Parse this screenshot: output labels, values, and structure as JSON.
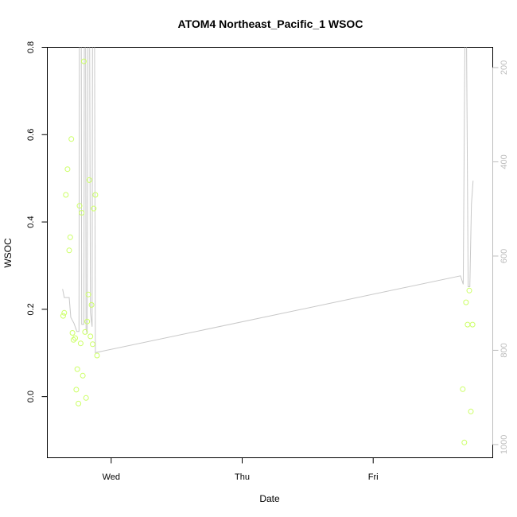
{
  "chart_data": {
    "type": "scatter",
    "title": "ATOM4 Northeast_Pacific_1 WSOC",
    "xlabel": "Date",
    "ylabel": "WSOC",
    "x_ticks": [
      "Wed",
      "Thu",
      "Fri"
    ],
    "x_tick_positions_hours": [
      48,
      72,
      96
    ],
    "xlim_hours": [
      36.3,
      117.9
    ],
    "ylim": [
      -0.14,
      0.8
    ],
    "y_ticks": [
      0.0,
      0.2,
      0.4,
      0.6,
      0.8
    ],
    "y_tick_labels": [
      "0.0",
      "0.2",
      "0.4",
      "0.6",
      "0.8"
    ],
    "secondary_axis": {
      "side": "right",
      "ylim": [
        1028,
        157
      ],
      "ticks": [
        200,
        400,
        600,
        800,
        1000
      ],
      "color": "#bdbdbd"
    },
    "grid": false,
    "series": [
      {
        "marker": "open-circle",
        "color": "#ccff66",
        "points": [
          [
            39.2,
            0.185
          ],
          [
            39.4,
            0.192
          ],
          [
            39.7,
            0.462
          ],
          [
            40.0,
            0.521
          ],
          [
            40.3,
            0.335
          ],
          [
            40.5,
            0.365
          ],
          [
            40.7,
            0.59
          ],
          [
            40.9,
            0.146
          ],
          [
            41.1,
            0.13
          ],
          [
            41.4,
            0.134
          ],
          [
            41.6,
            0.016
          ],
          [
            41.8,
            0.063
          ],
          [
            42.0,
            -0.016
          ],
          [
            42.2,
            0.437
          ],
          [
            42.4,
            0.122
          ],
          [
            42.6,
            0.421
          ],
          [
            42.8,
            0.048
          ],
          [
            43.0,
            0.768
          ],
          [
            43.2,
            0.148
          ],
          [
            43.4,
            -0.003
          ],
          [
            43.6,
            0.172
          ],
          [
            43.8,
            0.234
          ],
          [
            44.0,
            0.496
          ],
          [
            44.2,
            0.138
          ],
          [
            44.4,
            0.21
          ],
          [
            44.6,
            0.12
          ],
          [
            44.8,
            0.431
          ],
          [
            45.1,
            0.462
          ],
          [
            45.4,
            0.094
          ],
          [
            112.4,
            0.017
          ],
          [
            112.7,
            -0.105
          ],
          [
            113.0,
            0.216
          ],
          [
            113.3,
            0.165
          ],
          [
            113.6,
            0.243
          ],
          [
            113.9,
            -0.034
          ],
          [
            114.2,
            0.165
          ]
        ]
      },
      {
        "type": "line",
        "axis": "secondary",
        "color": "#c8c8c8",
        "points": [
          [
            39.1,
            670
          ],
          [
            39.4,
            688
          ],
          [
            39.8,
            688
          ],
          [
            40.3,
            688
          ],
          [
            40.6,
            730
          ],
          [
            41.2,
            743
          ],
          [
            41.7,
            760
          ],
          [
            42.1,
            760
          ],
          [
            42.2,
            -100
          ],
          [
            42.5,
            -100
          ],
          [
            42.6,
            745
          ],
          [
            43.0,
            745
          ],
          [
            43.1,
            -100
          ],
          [
            43.3,
            -100
          ],
          [
            43.4,
            755
          ],
          [
            43.6,
            765
          ],
          [
            43.8,
            -100
          ],
          [
            44.0,
            -100
          ],
          [
            44.2,
            720
          ],
          [
            44.5,
            750
          ],
          [
            44.6,
            -100
          ],
          [
            44.9,
            -100
          ],
          [
            45.1,
            805
          ],
          [
            112.0,
            642
          ],
          [
            112.5,
            660
          ],
          [
            112.8,
            150
          ],
          [
            113.1,
            150
          ],
          [
            113.4,
            665
          ],
          [
            113.7,
            665
          ],
          [
            114.0,
            490
          ],
          [
            114.3,
            440
          ]
        ]
      }
    ]
  }
}
